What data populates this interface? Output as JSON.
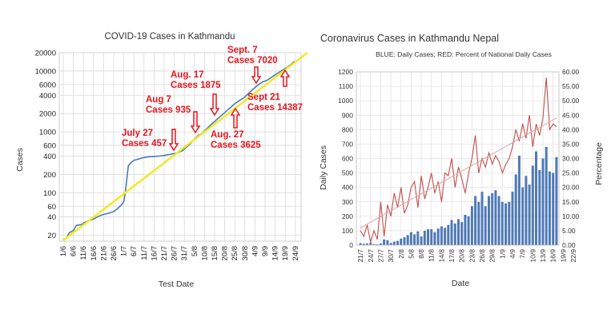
{
  "chart_data": [
    {
      "type": "line",
      "title": "COVID-19 Cases in Kathmandu",
      "xlabel": "Test Date",
      "ylabel": "Cases",
      "yscale": "log",
      "ylim": [
        16,
        20000
      ],
      "yticks": [
        20,
        40,
        60,
        100,
        200,
        400,
        600,
        1000,
        2000,
        4000,
        6000,
        10000,
        20000
      ],
      "ytick_labels": [
        "20",
        "40",
        "60",
        "100",
        "200",
        "400",
        "600",
        "1000",
        "2000",
        "4000",
        "6000",
        "10000",
        "20000"
      ],
      "categories": [
        "1/6",
        "6/6",
        "11/6",
        "16/6",
        "21/6",
        "26/6",
        "1/7",
        "6/7",
        "11/7",
        "16/7",
        "21/7",
        "26/7",
        "31/7",
        "5/8",
        "10/8",
        "15/8",
        "20/8",
        "25/8",
        "30/8",
        "4/9",
        "9/9",
        "14/9",
        "19/9",
        "24/9"
      ],
      "grid": true,
      "series": [
        {
          "name": "Cases",
          "color": "#4a7ab8",
          "points": [
            [
              0,
              17
            ],
            [
              0.3,
              18
            ],
            [
              0.6,
              22
            ],
            [
              1,
              24
            ],
            [
              1.3,
              29
            ],
            [
              1.8,
              30
            ],
            [
              2.2,
              33
            ],
            [
              2.6,
              35
            ],
            [
              3,
              37
            ],
            [
              3.5,
              41
            ],
            [
              4,
              44
            ],
            [
              4.5,
              46
            ],
            [
              5,
              49
            ],
            [
              5.4,
              55
            ],
            [
              5.8,
              64
            ],
            [
              6,
              72
            ],
            [
              6.15,
              100
            ],
            [
              6.3,
              170
            ],
            [
              6.45,
              280
            ],
            [
              6.7,
              310
            ],
            [
              7,
              340
            ],
            [
              7.5,
              360
            ],
            [
              8,
              380
            ],
            [
              8.5,
              390
            ],
            [
              9,
              395
            ],
            [
              9.5,
              400
            ],
            [
              10,
              410
            ],
            [
              10.5,
              425
            ],
            [
              11,
              440
            ],
            [
              11.4,
              457
            ],
            [
              11.8,
              490
            ],
            [
              12.2,
              560
            ],
            [
              12.6,
              640
            ],
            [
              13,
              760
            ],
            [
              13.4,
              880
            ],
            [
              13.7,
              935
            ],
            [
              14.1,
              1080
            ],
            [
              14.6,
              1300
            ],
            [
              15,
              1480
            ],
            [
              15.4,
              1700
            ],
            [
              15.7,
              1875
            ],
            [
              16.1,
              2150
            ],
            [
              16.5,
              2450
            ],
            [
              17,
              2900
            ],
            [
              17.5,
              3300
            ],
            [
              17.9,
              3625
            ],
            [
              18.3,
              4200
            ],
            [
              18.8,
              5000
            ],
            [
              19.3,
              5900
            ],
            [
              19.8,
              6700
            ],
            [
              20.2,
              7020
            ],
            [
              20.7,
              8000
            ],
            [
              21.2,
              9100
            ],
            [
              21.7,
              10300
            ],
            [
              22.2,
              11500
            ],
            [
              22.6,
              13000
            ],
            [
              22.9,
              14387
            ]
          ]
        },
        {
          "name": "Trend",
          "color": "#f2ea1a",
          "points": [
            [
              0,
              16.5
            ],
            [
              24.2,
              20000
            ]
          ]
        }
      ],
      "annotations": [
        {
          "lines": [
            "July 27",
            "Cases 457"
          ],
          "x": 11.4,
          "y": 457,
          "arrow": "down"
        },
        {
          "lines": [
            "Aug 7",
            "Cases 935"
          ],
          "x": 13.8,
          "y": 935,
          "arrow": "down"
        },
        {
          "lines": [
            "Aug. 17",
            "Cases 1875"
          ],
          "x": 15.8,
          "y": 1875,
          "arrow": "down"
        },
        {
          "lines": [
            "Aug. 27",
            "Cases 3625"
          ],
          "x": 17.9,
          "y": 3625,
          "arrow": "up"
        },
        {
          "lines": [
            "Sept. 7",
            "Cases 7020"
          ],
          "x": 20.2,
          "y": 7020,
          "arrow": "down"
        },
        {
          "lines": [
            "Sept 21",
            "Cases 14387"
          ],
          "x": 22.9,
          "y": 14387,
          "arrow": "up"
        }
      ]
    },
    {
      "type": "bar",
      "title": "Coronavirus Cases in Kathmandu Nepal",
      "subtitle": "BLUE: Daily Cases; RED: Percent of National Daily Cases",
      "xlabel": "Date",
      "ylabel": "Daily Cases",
      "y2label": "Percentage",
      "ylim": [
        0,
        1200
      ],
      "y2lim": [
        0,
        60
      ],
      "yticks": [
        "0",
        "100",
        "200",
        "300",
        "400",
        "500",
        "600",
        "700",
        "800",
        "900",
        "1000",
        "1100",
        "1200"
      ],
      "y2ticks": [
        "0.00",
        "5.00",
        "10.00",
        "15.00",
        "20.00",
        "25.00",
        "30.00",
        "35.00",
        "40.00",
        "45.00",
        "50.00",
        "55.00",
        "60.00"
      ],
      "xtick_labels": [
        "21/7",
        "24/7",
        "27/7",
        "30/7",
        "2/8",
        "5/8",
        "8/8",
        "11/8",
        "14/8",
        "17/8",
        "20/8",
        "23/8",
        "26/8",
        "29/8",
        "1/9",
        "4/9",
        "7/9",
        "10/9",
        "13/9",
        "16/9",
        "19/9",
        "22/9"
      ],
      "grid": true,
      "series": [
        {
          "name": "Daily Cases",
          "axis": "left",
          "color": "#4f79b5",
          "values": [
            14,
            10,
            12,
            18,
            8,
            6,
            12,
            40,
            35,
            15,
            25,
            30,
            45,
            55,
            70,
            90,
            75,
            95,
            60,
            100,
            110,
            110,
            90,
            115,
            130,
            120,
            140,
            175,
            150,
            180,
            160,
            210,
            200,
            270,
            340,
            300,
            370,
            270,
            340,
            360,
            380,
            340,
            300,
            290,
            300,
            370,
            490,
            620,
            400,
            480,
            420,
            550,
            650,
            520,
            600,
            680,
            510,
            500,
            610
          ]
        },
        {
          "name": "Percent of National Daily Cases",
          "axis": "right",
          "color": "#c0504d",
          "values": [
            5,
            3,
            7,
            1,
            5,
            2,
            15,
            3,
            14,
            10,
            18,
            13,
            20,
            11,
            14,
            20,
            22,
            13,
            24,
            16,
            20,
            25,
            18,
            22,
            15,
            25,
            24,
            30,
            20,
            27,
            23,
            18,
            25,
            30,
            38,
            25,
            30,
            27,
            32,
            28,
            31,
            29,
            25,
            28,
            30,
            34,
            40,
            36,
            42,
            37,
            45,
            34,
            42,
            38,
            44,
            58,
            40,
            42,
            41
          ]
        },
        {
          "name": "Trend",
          "axis": "right",
          "color": "#dba5a5",
          "values": [
            6,
            44
          ]
        }
      ]
    }
  ]
}
